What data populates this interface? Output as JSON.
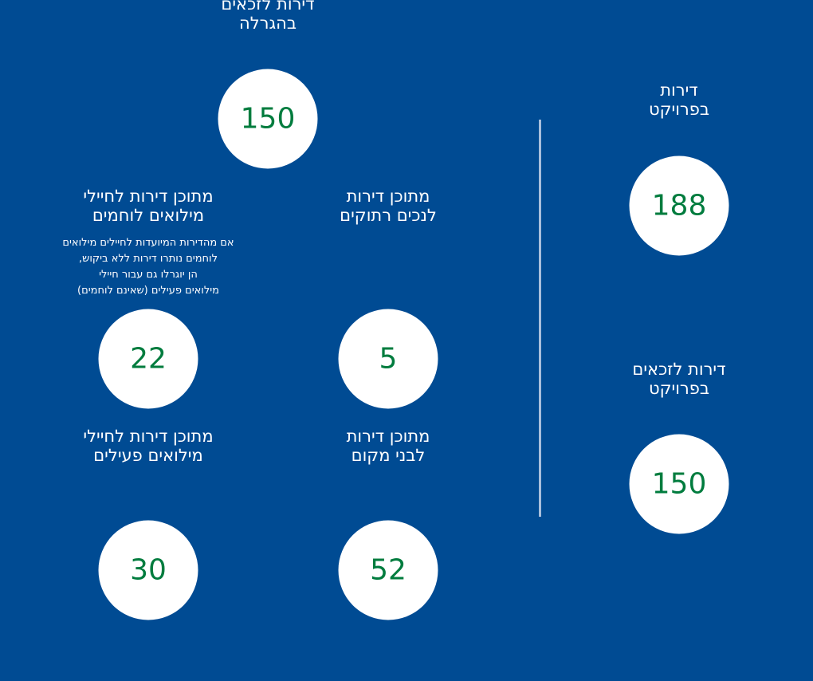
{
  "stats": {
    "project_apartments": {
      "line1": "דירות",
      "line2": "בפרויקט",
      "value": "188"
    },
    "project_winners": {
      "line1": "דירות לזכאים",
      "line2": "בפרויקט",
      "value": "150"
    },
    "lottery_winners": {
      "line1": "דירות לזכאים",
      "line2": "בהגרלה",
      "value": "150"
    },
    "remote_disabled": {
      "line1": "מתוכן דירות",
      "line2": "לנכים רתוקים",
      "value": "5"
    },
    "combat_reservists": {
      "line1": "מתוכן דירות לחיילי",
      "line2": "מילואים לוחמים",
      "note": [
        "אם מהדירות המיועדות לחיילים מילואים",
        "לוחמים נותרו דירות ללא ביקוש,",
        "הן יוגרלו גם עבור חיילי",
        "מילואים פעילים (שאינם לוחמים)"
      ],
      "value": "22"
    },
    "locals": {
      "line1": "מתוכן דירות",
      "line2": "לבני מקום",
      "value": "52"
    },
    "active_reservists": {
      "line1": "מתוכן דירות לחיילי",
      "line2": "מילואים פעילים",
      "value": "30"
    }
  },
  "colors": {
    "background": "#004b93",
    "circle": "#ffffff",
    "number": "#007c3e",
    "divider": "#a9bfdc"
  }
}
